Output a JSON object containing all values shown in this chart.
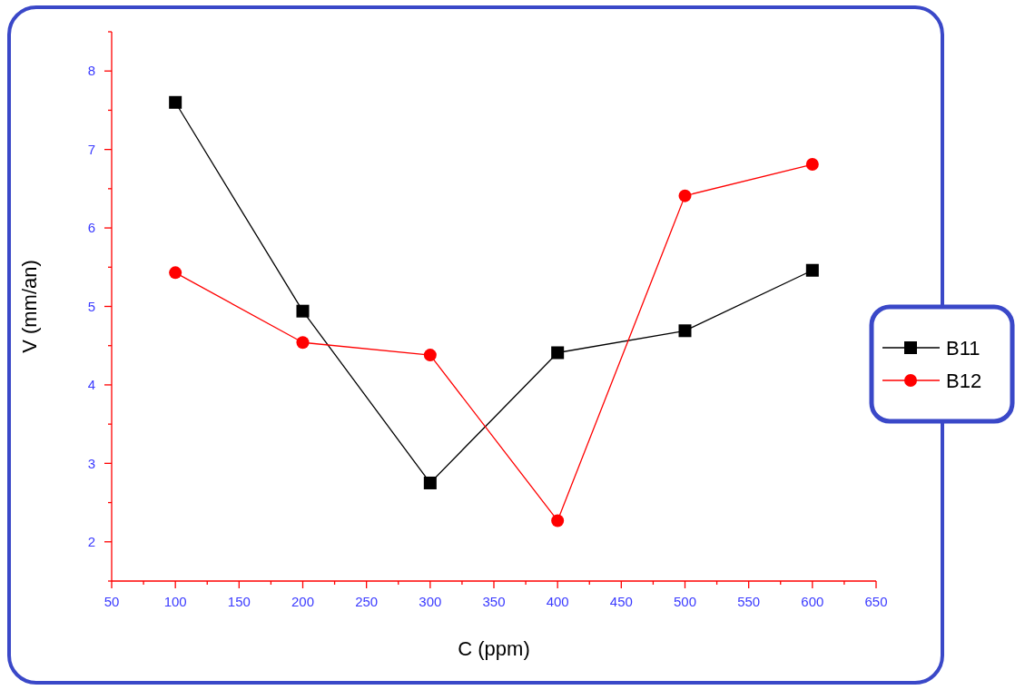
{
  "chart_data": {
    "type": "line",
    "xlabel": "C (ppm)",
    "ylabel": "V (mm/an)",
    "x": [
      100,
      200,
      300,
      400,
      500,
      600
    ],
    "series": [
      {
        "name": "B11",
        "color": "#000000",
        "marker": "square",
        "values": [
          7.6,
          4.94,
          2.75,
          4.41,
          4.69,
          5.46
        ]
      },
      {
        "name": "B12",
        "color": "#ff0000",
        "marker": "circle",
        "values": [
          5.43,
          4.54,
          4.38,
          2.27,
          6.41,
          6.81
        ]
      }
    ],
    "xlim": [
      50,
      650
    ],
    "xticks": [
      50,
      {
        "value": 75,
        "label": null
      },
      100,
      {
        "value": 125,
        "label": null
      },
      150,
      {
        "value": 175,
        "label": null
      },
      200,
      {
        "value": 225,
        "label": null
      },
      250,
      {
        "value": 275,
        "label": null
      },
      300,
      {
        "value": 325,
        "label": null
      },
      350,
      {
        "value": 375,
        "label": null
      },
      400,
      {
        "value": 425,
        "label": null
      },
      450,
      {
        "value": 475,
        "label": null
      },
      500,
      {
        "value": 525,
        "label": null
      },
      550,
      {
        "value": 575,
        "label": null
      },
      600,
      {
        "value": 625,
        "label": null
      },
      650
    ],
    "ylim": [
      1.5,
      8.5
    ],
    "yticks": [
      {
        "value": 1.5,
        "label": null
      },
      2,
      {
        "value": 2.5,
        "label": null
      },
      3,
      {
        "value": 3.5,
        "label": null
      },
      4,
      {
        "value": 4.5,
        "label": null
      },
      5,
      {
        "value": 5.5,
        "label": null
      },
      6,
      {
        "value": 6.5,
        "label": null
      },
      7,
      {
        "value": 7.5,
        "label": null
      },
      8,
      {
        "value": 8.5,
        "label": null
      }
    ],
    "grid": false,
    "legend": "right",
    "line_style": "solid"
  }
}
